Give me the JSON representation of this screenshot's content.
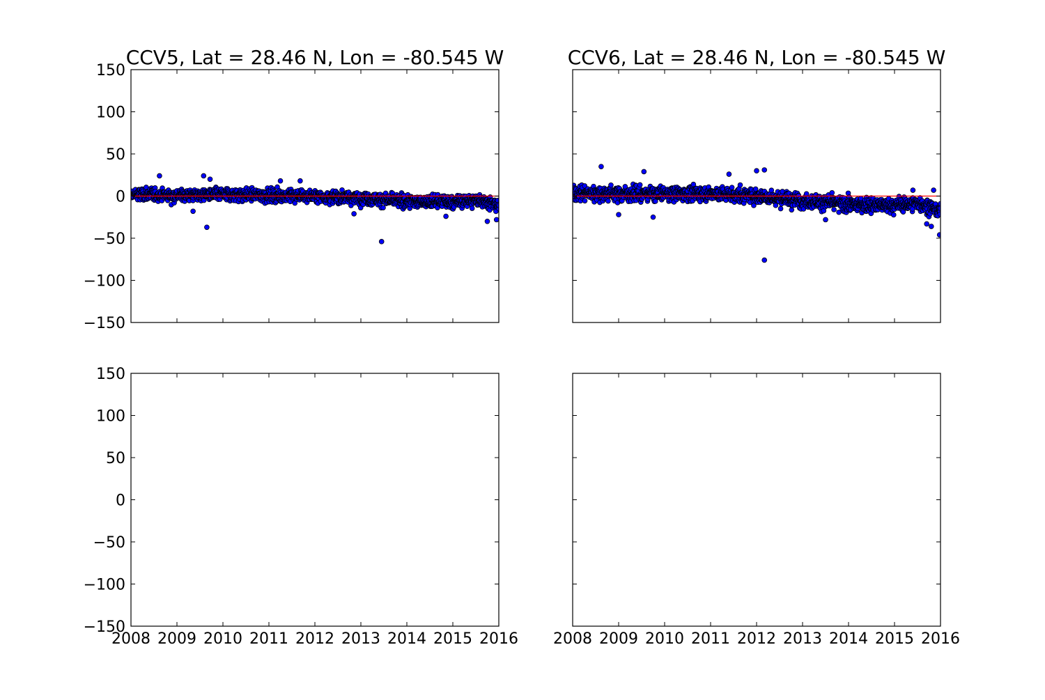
{
  "chart_data": [
    {
      "type": "scatter",
      "title": "CCV5, Lat = 28.46 N, Lon = -80.545 W",
      "xlabel": "",
      "ylabel": "",
      "xlim": [
        2008,
        2016
      ],
      "ylim": [
        -150,
        150
      ],
      "x_ticks": [
        "2008",
        "2009",
        "2010",
        "2011",
        "2012",
        "2013",
        "2014",
        "2015",
        "2016"
      ],
      "y_ticks": [
        "150",
        "100",
        "50",
        "0",
        "−50",
        "−100",
        "−150"
      ],
      "show_x_tick_labels": false,
      "show_y_tick_labels": true,
      "reference_line": {
        "y": 0,
        "color": "#ff0000"
      },
      "marker_color": "#0000ff",
      "series": [
        {
          "trend": [
            [
              2008.0,
              2
            ],
            [
              2009.0,
              1
            ],
            [
              2010.0,
              2
            ],
            [
              2011.0,
              1
            ],
            [
              2012.0,
              0
            ],
            [
              2013.0,
              -2
            ],
            [
              2014.0,
              -6
            ],
            [
              2015.0,
              -7
            ],
            [
              2015.6,
              -4
            ],
            [
              2016.0,
              -12
            ]
          ],
          "spread": 7,
          "count": 1500,
          "outliers": [
            [
              2009.65,
              -37
            ],
            [
              2013.45,
              -54
            ],
            [
              2008.62,
              24
            ],
            [
              2009.58,
              24
            ],
            [
              2009.72,
              20
            ],
            [
              2011.25,
              18
            ],
            [
              2011.68,
              18
            ],
            [
              2015.75,
              -30
            ],
            [
              2015.95,
              -28
            ],
            [
              2014.85,
              -24
            ],
            [
              2012.85,
              -21
            ],
            [
              2009.35,
              -18
            ]
          ]
        }
      ]
    },
    {
      "type": "scatter",
      "title": "CCV6, Lat = 28.46 N, Lon = -80.545 W",
      "xlabel": "",
      "ylabel": "",
      "xlim": [
        2008,
        2016
      ],
      "ylim": [
        -150,
        150
      ],
      "x_ticks": [
        "2008",
        "2009",
        "2010",
        "2011",
        "2012",
        "2013",
        "2014",
        "2015",
        "2016"
      ],
      "y_ticks": [
        "150",
        "100",
        "50",
        "0",
        "−50",
        "−100",
        "−150"
      ],
      "show_x_tick_labels": false,
      "show_y_tick_labels": false,
      "reference_line": {
        "y": 0,
        "color": "#ff0000"
      },
      "marker_color": "#0000ff",
      "series": [
        {
          "trend": [
            [
              2008.0,
              4
            ],
            [
              2009.0,
              3
            ],
            [
              2010.0,
              3
            ],
            [
              2011.0,
              3
            ],
            [
              2012.0,
              0
            ],
            [
              2013.0,
              -5
            ],
            [
              2014.0,
              -10
            ],
            [
              2015.0,
              -11
            ],
            [
              2015.5,
              -8
            ],
            [
              2016.0,
              -18
            ]
          ],
          "spread": 8,
          "count": 1500,
          "outliers": [
            [
              2008.62,
              35
            ],
            [
              2009.55,
              29
            ],
            [
              2012.0,
              30
            ],
            [
              2012.17,
              31
            ],
            [
              2011.4,
              26
            ],
            [
              2009.75,
              -25
            ],
            [
              2012.17,
              -76
            ],
            [
              2015.7,
              -33
            ],
            [
              2015.8,
              -36
            ],
            [
              2015.98,
              -46
            ],
            [
              2015.85,
              7
            ],
            [
              2015.4,
              7
            ],
            [
              2013.5,
              -28
            ],
            [
              2009.0,
              -22
            ]
          ]
        }
      ]
    },
    {
      "type": "scatter",
      "title": "",
      "xlabel": "",
      "ylabel": "",
      "xlim": [
        2008,
        2016
      ],
      "ylim": [
        -150,
        150
      ],
      "x_ticks": [
        "2008",
        "2009",
        "2010",
        "2011",
        "2012",
        "2013",
        "2014",
        "2015",
        "2016"
      ],
      "y_ticks": [
        "150",
        "100",
        "50",
        "0",
        "−50",
        "−100",
        "−150"
      ],
      "show_x_tick_labels": true,
      "show_y_tick_labels": true,
      "series": []
    },
    {
      "type": "scatter",
      "title": "",
      "xlabel": "",
      "ylabel": "",
      "xlim": [
        2008,
        2016
      ],
      "ylim": [
        -150,
        150
      ],
      "x_ticks": [
        "2008",
        "2009",
        "2010",
        "2011",
        "2012",
        "2013",
        "2014",
        "2015",
        "2016"
      ],
      "y_ticks": [
        "150",
        "100",
        "50",
        "0",
        "−50",
        "−100",
        "−150"
      ],
      "show_x_tick_labels": true,
      "show_y_tick_labels": false,
      "series": []
    }
  ]
}
